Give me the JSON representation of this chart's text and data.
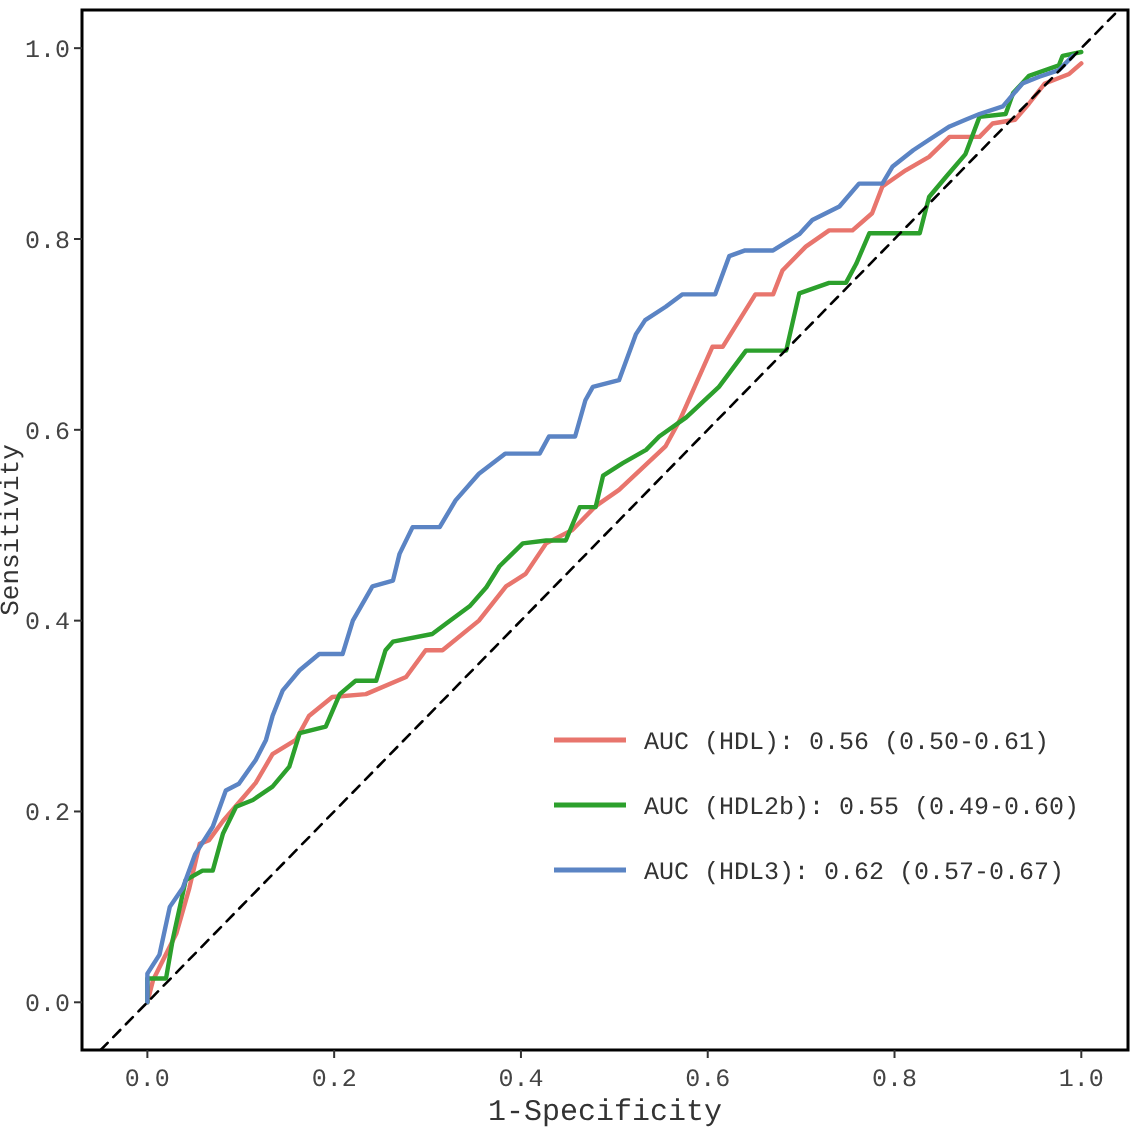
{
  "chart_data": {
    "type": "line",
    "xlabel": "1-Specificity",
    "ylabel": "Sensitivity",
    "xlim": [
      -0.07,
      1.05
    ],
    "ylim": [
      -0.05,
      1.04
    ],
    "xticks": [
      {
        "value": 0,
        "label": "0.0"
      },
      {
        "value": 0.2,
        "label": "0.2"
      },
      {
        "value": 0.4,
        "label": "0.4"
      },
      {
        "value": 0.6,
        "label": "0.6"
      },
      {
        "value": 0.8,
        "label": "0.8"
      },
      {
        "value": 1,
        "label": "1.0"
      }
    ],
    "yticks": [
      {
        "value": 0,
        "label": "0.0"
      },
      {
        "value": 0.2,
        "label": "0.2"
      },
      {
        "value": 0.4,
        "label": "0.4"
      },
      {
        "value": 0.6,
        "label": "0.6"
      },
      {
        "value": 0.8,
        "label": "0.8"
      },
      {
        "value": 1,
        "label": "1.0"
      }
    ],
    "grid": false,
    "legend": "bottom right",
    "marker": "none",
    "series": [
      {
        "name": "AUC (HDL): 0.56 (0.50-0.61)",
        "color": "#e8756d",
        "x": [
          0,
          0.006,
          0.031,
          0.045,
          0.056,
          0.066,
          0.081,
          0.116,
          0.134,
          0.159,
          0.173,
          0.198,
          0.234,
          0.277,
          0.298,
          0.316,
          0.355,
          0.384,
          0.405,
          0.427,
          0.455,
          0.48,
          0.505,
          0.555,
          0.57,
          0.605,
          0.616,
          0.651,
          0.67,
          0.68,
          0.705,
          0.73,
          0.755,
          0.776,
          0.787,
          0.812,
          0.837,
          0.859,
          0.891,
          0.905,
          0.929,
          0.944,
          0.961,
          0.987,
          1.0
        ],
        "values": [
          0,
          0.023,
          0.072,
          0.12,
          0.166,
          0.17,
          0.19,
          0.23,
          0.26,
          0.275,
          0.3,
          0.32,
          0.323,
          0.341,
          0.369,
          0.369,
          0.4,
          0.436,
          0.449,
          0.481,
          0.495,
          0.52,
          0.537,
          0.583,
          0.61,
          0.687,
          0.687,
          0.742,
          0.742,
          0.767,
          0.792,
          0.809,
          0.809,
          0.827,
          0.855,
          0.872,
          0.886,
          0.907,
          0.907,
          0.921,
          0.925,
          0.942,
          0.963,
          0.973,
          0.984
        ]
      },
      {
        "name": "AUC (HDL2b): 0.55 (0.49-0.60)",
        "color": "#2ca02c",
        "x": [
          0,
          0.0,
          0.02,
          0.027,
          0.041,
          0.059,
          0.07,
          0.081,
          0.095,
          0.113,
          0.134,
          0.152,
          0.163,
          0.191,
          0.206,
          0.223,
          0.245,
          0.255,
          0.263,
          0.305,
          0.32,
          0.345,
          0.363,
          0.377,
          0.402,
          0.427,
          0.448,
          0.463,
          0.48,
          0.488,
          0.509,
          0.534,
          0.548,
          0.577,
          0.612,
          0.641,
          0.684,
          0.698,
          0.73,
          0.748,
          0.759,
          0.773,
          0.827,
          0.837,
          0.855,
          0.876,
          0.891,
          0.919,
          0.927,
          0.944,
          0.976,
          0.98,
          1.0
        ],
        "values": [
          0,
          0.025,
          0.025,
          0.065,
          0.128,
          0.138,
          0.138,
          0.177,
          0.205,
          0.212,
          0.226,
          0.247,
          0.282,
          0.289,
          0.323,
          0.337,
          0.337,
          0.369,
          0.378,
          0.386,
          0.397,
          0.415,
          0.435,
          0.457,
          0.481,
          0.484,
          0.484,
          0.519,
          0.519,
          0.552,
          0.565,
          0.579,
          0.593,
          0.613,
          0.645,
          0.683,
          0.683,
          0.743,
          0.754,
          0.754,
          0.774,
          0.806,
          0.806,
          0.844,
          0.865,
          0.889,
          0.928,
          0.931,
          0.953,
          0.971,
          0.982,
          0.992,
          0.996
        ]
      },
      {
        "name": "AUC (HDL3): 0.62 (0.57-0.67)",
        "color": "#5b84c4",
        "x": [
          0,
          0,
          0.013,
          0.024,
          0.038,
          0.051,
          0.07,
          0.084,
          0.098,
          0.116,
          0.127,
          0.134,
          0.145,
          0.163,
          0.184,
          0.209,
          0.22,
          0.241,
          0.263,
          0.27,
          0.284,
          0.313,
          0.33,
          0.355,
          0.383,
          0.42,
          0.43,
          0.458,
          0.469,
          0.477,
          0.505,
          0.523,
          0.533,
          0.555,
          0.573,
          0.608,
          0.623,
          0.64,
          0.67,
          0.698,
          0.712,
          0.741,
          0.762,
          0.787,
          0.798,
          0.82,
          0.837,
          0.859,
          0.876,
          0.891,
          0.916,
          0.937,
          0.955,
          0.976,
          0.991
        ],
        "values": [
          0,
          0.03,
          0.05,
          0.1,
          0.12,
          0.155,
          0.184,
          0.222,
          0.229,
          0.254,
          0.275,
          0.3,
          0.327,
          0.348,
          0.365,
          0.365,
          0.4,
          0.436,
          0.442,
          0.47,
          0.498,
          0.498,
          0.526,
          0.554,
          0.575,
          0.575,
          0.593,
          0.593,
          0.631,
          0.645,
          0.652,
          0.7,
          0.715,
          0.729,
          0.742,
          0.742,
          0.782,
          0.788,
          0.788,
          0.805,
          0.82,
          0.834,
          0.858,
          0.858,
          0.876,
          0.893,
          0.904,
          0.918,
          0.925,
          0.931,
          0.939,
          0.963,
          0.97,
          0.977,
          0.992
        ]
      },
      {
        "color": "#000000",
        "line_style": "dashed",
        "x": [
          -0.05,
          1.04
        ],
        "values": [
          -0.05,
          1.04
        ]
      }
    ]
  }
}
